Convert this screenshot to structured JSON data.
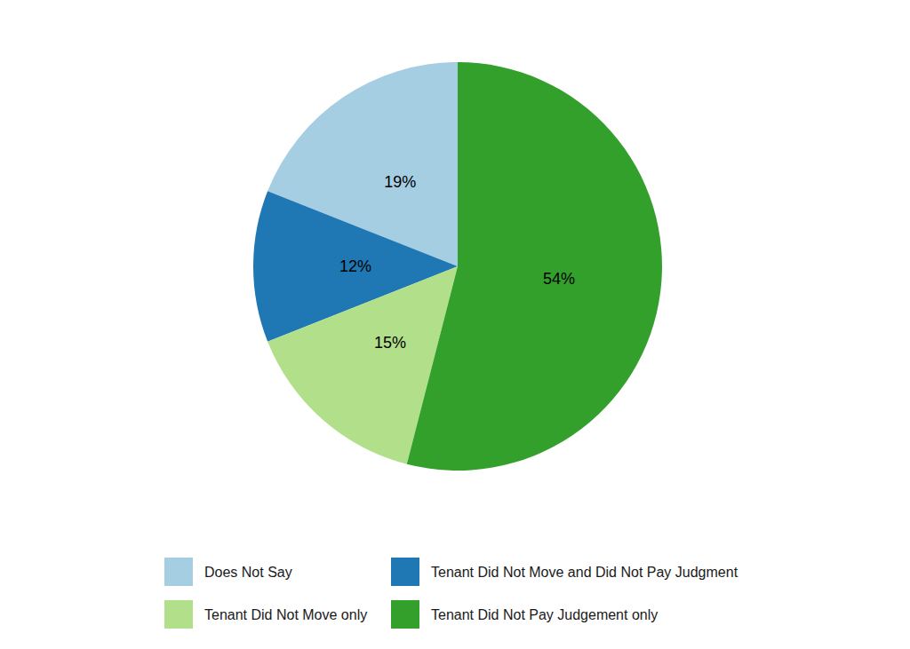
{
  "chart_data": {
    "type": "pie",
    "categories": [
      "Does Not Say",
      "Tenant Did Not Move and Did Not Pay Judgment",
      "Tenant Did Not Move only",
      "Tenant Did Not Pay Judgement only"
    ],
    "values": [
      19,
      12,
      15,
      54
    ],
    "value_labels": [
      "19%",
      "12%",
      "15%",
      "54%"
    ],
    "colors": [
      "#a6cee3",
      "#1f78b4",
      "#b2df8a",
      "#33a02c"
    ],
    "data_labels": true,
    "legend": "bottom"
  }
}
